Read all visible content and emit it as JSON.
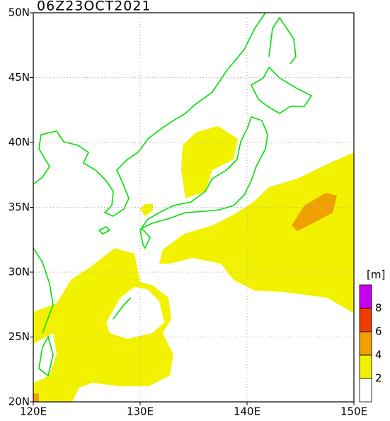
{
  "title": "06Z23OCT2021",
  "x_axis": {
    "ticks": [
      "120E",
      "130E",
      "140E",
      "150E"
    ]
  },
  "y_axis": {
    "ticks": [
      "20N",
      "25N",
      "30N",
      "35N",
      "40N",
      "45N",
      "50N"
    ]
  },
  "legend": {
    "unit": "[m]",
    "labels": [
      "2",
      "4",
      "6",
      "8"
    ],
    "colors": [
      "#ffffff",
      "#f2f200",
      "#f0a000",
      "#f03c00",
      "#c800f0"
    ]
  }
}
